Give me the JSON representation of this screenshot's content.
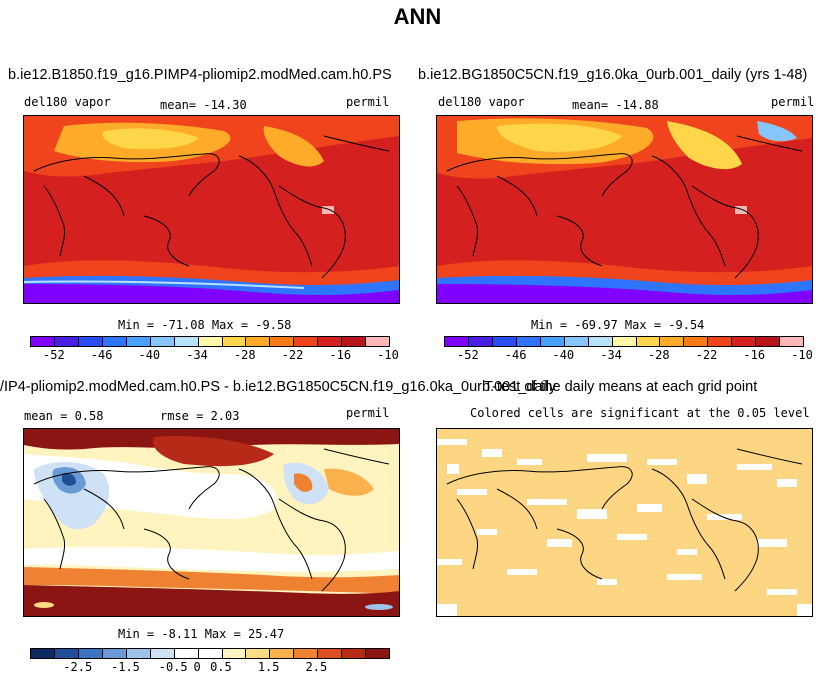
{
  "title": "ANN",
  "case1_title": "b.ie12.B1850.f19_g16.PIMP4-pliomip2.modMed.cam.h0.PS",
  "case2_title": "b.ie12.BG1850C5CN.f19_g16.0ka_0urb.001_daily (yrs 1-48)",
  "diff_title": "/IP4-pliomip2.modMed.cam.h0.PS - b.ie12.BG1850C5CN.f19_g16.0ka_0urb.001_daily",
  "ttest_title": "T-test of the daily means at each grid point",
  "panels": {
    "p1": {
      "left_label": "del180 vapor",
      "mean_label": "mean= -14.30",
      "units": "permil",
      "minmax": "Min = -71.08 Max =  -9.58"
    },
    "p2": {
      "left_label": "del180 vapor",
      "mean_label": "mean= -14.88",
      "units": "permil",
      "minmax": "Min = -69.97 Max =  -9.54"
    },
    "p3": {
      "mean_label": "mean =   0.58",
      "rmse_label": "rmse =   2.03",
      "units": "permil",
      "minmax": "Min =  -8.11 Max =  25.47"
    },
    "p4": {
      "caption": "Colored cells are significant at the 0.05 level"
    }
  },
  "colorbar_abs": {
    "colors": [
      "#7f00ff",
      "#4b1ee6",
      "#2a4cf0",
      "#2f74ff",
      "#4aa0ff",
      "#86c5ff",
      "#b7e2ff",
      "#fff7a8",
      "#ffd54a",
      "#ffab2a",
      "#ff7b16",
      "#f0451c",
      "#d4201e",
      "#b8141a",
      "#ffb8b8"
    ],
    "ticks": [
      "-52",
      "-46",
      "-40",
      "-34",
      "-28",
      "-22",
      "-16",
      "-10"
    ]
  },
  "colorbar_diff": {
    "colors": [
      "#0d2a5e",
      "#1f4d96",
      "#3d74c1",
      "#6a9ad6",
      "#9dc3ea",
      "#cfe2f5",
      "#ffffff",
      "#ffffff",
      "#fff3c0",
      "#fddc86",
      "#f9b24e",
      "#ef8232",
      "#dc4f22",
      "#b72a18",
      "#8a1512"
    ],
    "ticks": [
      "-2.5",
      "-1.5",
      "-0.5",
      "0",
      "0.5",
      "1.5",
      "2.5"
    ]
  },
  "colors": {
    "abs_base": "#d4201e",
    "abs_orange": "#f0451c",
    "abs_amber": "#ffab2a",
    "abs_yellow": "#ffd54a",
    "abs_purple": "#7f00ff",
    "abs_blue": "#2f74ff",
    "abs_pink": "#ffb8b8",
    "diff_base": "#fff3c0",
    "diff_red": "#8a1512",
    "diff_blue": "#9dc3ea",
    "sig_fill": "#fdd684"
  }
}
